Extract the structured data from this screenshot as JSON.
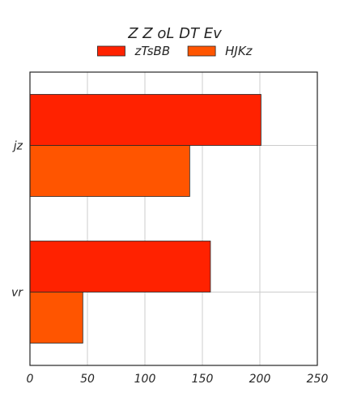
{
  "chart_data": {
    "type": "bar",
    "orientation": "horizontal",
    "title": "Z Z oL DT Ev",
    "xlabel": "",
    "ylabel": "",
    "categories": [
      "jz",
      "vr"
    ],
    "series": [
      {
        "name": "zTsBB",
        "values": [
          201,
          157
        ],
        "color": "#ff2200"
      },
      {
        "name": "HJKz",
        "values": [
          139,
          46
        ],
        "color": "#ff5500"
      }
    ],
    "xlim": [
      0,
      250
    ],
    "xticks": [
      0,
      50,
      100,
      150,
      200,
      250
    ],
    "grid": true,
    "legend_position": "top-center"
  }
}
